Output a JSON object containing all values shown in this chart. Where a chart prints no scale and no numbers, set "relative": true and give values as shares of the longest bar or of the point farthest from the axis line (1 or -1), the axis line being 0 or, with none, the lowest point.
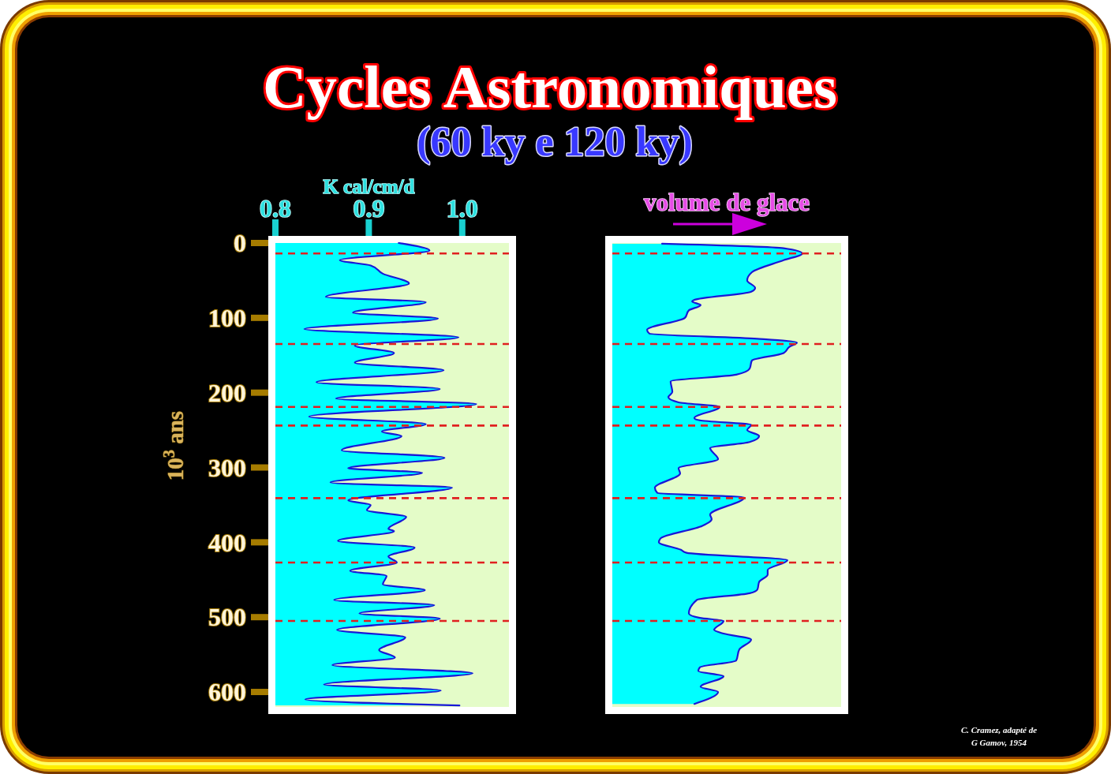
{
  "chart_data": [
    {
      "type": "area",
      "orientation": "horizontal",
      "title": "Cycles Astronomiques",
      "subtitle": "(60 ky e 120 ky)",
      "xlabel": "K cal/cm/d",
      "ylabel": "10$^{3}$ ans",
      "x": [
        0,
        10,
        23,
        30,
        41,
        54,
        72,
        79,
        93,
        101,
        115,
        126,
        137,
        147,
        160,
        170,
        186,
        195,
        208,
        215,
        232,
        242,
        252,
        258,
        277,
        287,
        301,
        307,
        320,
        327,
        344,
        350,
        357,
        366,
        382,
        385,
        398,
        407,
        419,
        427,
        438,
        445,
        456,
        464,
        477,
        484,
        495,
        502,
        517,
        527,
        544,
        554,
        564,
        575,
        590,
        598,
        610,
        618
      ],
      "series": [
        {
          "color": "#00ffff",
          "values": [
            0.932,
            0.965,
            0.869,
            0.902,
            0.915,
            0.943,
            0.854,
            0.961,
            0.883,
            0.974,
            0.831,
            0.996,
            0.885,
            0.927,
            0.885,
            0.98,
            0.844,
            0.976,
            0.865,
            1.015,
            0.836,
            0.961,
            0.914,
            0.935,
            0.871,
            0.981,
            0.878,
            0.957,
            0.859,
            0.989,
            0.878,
            0.902,
            0.898,
            0.94,
            0.921,
            0.927,
            0.867,
            0.949,
            0.921,
            0.93,
            0.88,
            0.919,
            0.915,
            0.96,
            0.863,
            0.97,
            0.89,
            0.976,
            0.866,
            0.939,
            0.911,
            0.928,
            0.861,
            1.011,
            0.852,
            0.977,
            0.832,
            0.997
          ]
        }
      ],
      "xlim": [
        0.8,
        1.05
      ],
      "xticks": [
        0.8,
        0.9,
        {
          "value": 1,
          "label": "1.0"
        }
      ],
      "ylim": [
        620,
        0
      ],
      "yticks": [
        0,
        100,
        200,
        300,
        400,
        500,
        600
      ],
      "ref_lines": [
        {
          "axis": "y",
          "value": 14,
          "color": "#e02020",
          "line_style": "dashed"
        },
        {
          "axis": "y",
          "value": 135,
          "color": "#e02020",
          "line_style": "dashed"
        },
        {
          "axis": "y",
          "value": 219,
          "color": "#e02020",
          "line_style": "dashed"
        },
        {
          "axis": "y",
          "value": 244,
          "color": "#e02020",
          "line_style": "dashed"
        },
        {
          "axis": "y",
          "value": 341,
          "color": "#e02020",
          "line_style": "dashed"
        },
        {
          "axis": "y",
          "value": 427,
          "color": "#e02020",
          "line_style": "dashed"
        },
        {
          "axis": "y",
          "value": 505,
          "color": "#e02020",
          "line_style": "dashed"
        }
      ]
    },
    {
      "type": "area",
      "orientation": "horizontal",
      "relative": true,
      "xlabel": "volume de glace",
      "ylim": [
        620,
        0
      ],
      "x": [
        1,
        7,
        14,
        23,
        39,
        50,
        60,
        65,
        76,
        78,
        83,
        90,
        100,
        116,
        121,
        128,
        133,
        139,
        147,
        157,
        168,
        176,
        185,
        199,
        206,
        213,
        219,
        234,
        237,
        243,
        250,
        258,
        266,
        274,
        289,
        301,
        308,
        327,
        334,
        340,
        363,
        369,
        378,
        395,
        400,
        410,
        414,
        424,
        437,
        443,
        453,
        463,
        468,
        477,
        495,
        501,
        505,
        517,
        522,
        530,
        543,
        558,
        567,
        572,
        579,
        593,
        600,
        616
      ],
      "series": [
        {
          "color": "#00ffff",
          "values": [
            0.262,
            0.902,
            1.0,
            0.902,
            0.735,
            0.71,
            0.752,
            0.731,
            0.432,
            0.42,
            0.465,
            0.403,
            0.382,
            0.183,
            0.195,
            0.764,
            0.972,
            0.931,
            0.902,
            0.735,
            0.723,
            0.652,
            0.307,
            0.316,
            0.295,
            0.349,
            0.565,
            0.432,
            0.461,
            0.731,
            0.71,
            0.773,
            0.723,
            0.515,
            0.557,
            0.349,
            0.357,
            0.224,
            0.237,
            0.694,
            0.515,
            0.523,
            0.474,
            0.253,
            0.245,
            0.361,
            0.391,
            0.922,
            0.818,
            0.818,
            0.773,
            0.764,
            0.723,
            0.445,
            0.403,
            0.461,
            0.586,
            0.536,
            0.586,
            0.731,
            0.669,
            0.652,
            0.461,
            0.453,
            0.586,
            0.465,
            0.557,
            0.432
          ]
        }
      ],
      "ref_lines": [
        {
          "axis": "y",
          "value": 14,
          "color": "#e02020",
          "line_style": "dashed"
        },
        {
          "axis": "y",
          "value": 135,
          "color": "#e02020",
          "line_style": "dashed"
        },
        {
          "axis": "y",
          "value": 219,
          "color": "#e02020",
          "line_style": "dashed"
        },
        {
          "axis": "y",
          "value": 244,
          "color": "#e02020",
          "line_style": "dashed"
        },
        {
          "axis": "y",
          "value": 341,
          "color": "#e02020",
          "line_style": "dashed"
        },
        {
          "axis": "y",
          "value": 427,
          "color": "#e02020",
          "line_style": "dashed"
        },
        {
          "axis": "y",
          "value": 505,
          "color": "#e02020",
          "line_style": "dashed"
        }
      ],
      "annotations": [
        "C. Cramez, adapté de G Gamov, 1954"
      ]
    }
  ]
}
